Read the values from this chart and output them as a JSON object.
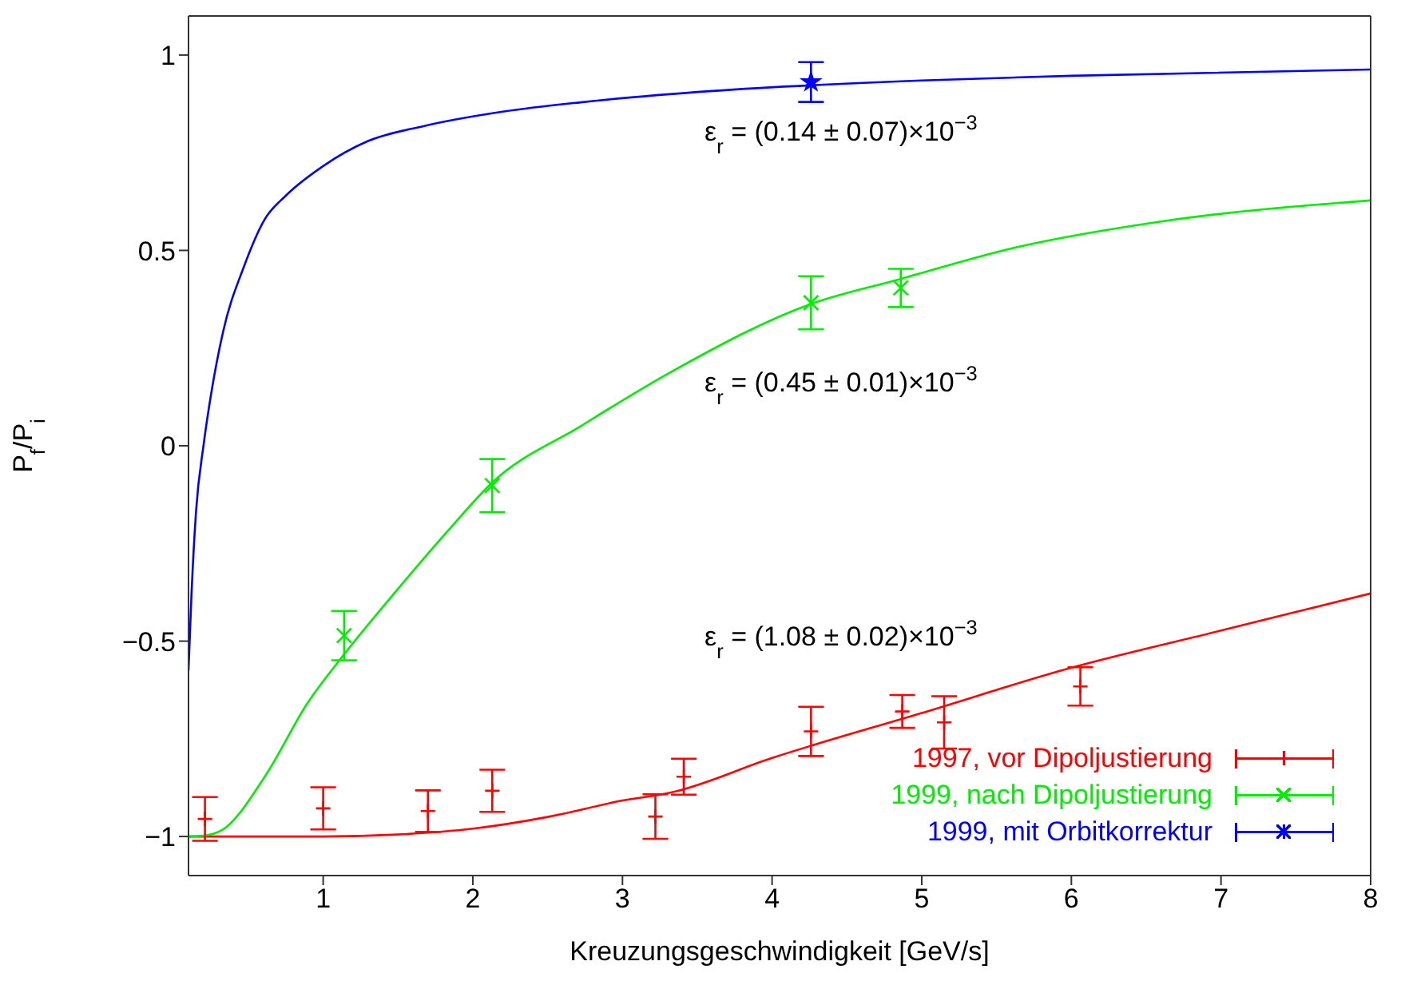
{
  "chart_data": {
    "type": "scatter",
    "xlabel": "Kreuzungsgeschwindigkeit [GeV/s]",
    "ylabel": "P$_{f}$/P$_{i}$",
    "xlim": [
      0.1,
      8
    ],
    "ylim": [
      -1.1,
      1.1
    ],
    "xticks": [
      1,
      2,
      3,
      4,
      5,
      6,
      7,
      8
    ],
    "yticks": [
      -1,
      -0.5,
      0,
      0.5,
      1
    ],
    "grid": false,
    "legend": "bottom right",
    "series": [
      {
        "type": "line",
        "color": "#ff0000",
        "x": [
          0.1,
          1,
          1.5,
          2,
          2.5,
          3,
          3.33,
          4,
          5,
          6,
          7,
          8
        ],
        "values": [
          -1,
          -1,
          -0.995,
          -0.98,
          -0.95,
          -0.908,
          -0.887,
          -0.799,
          -0.684,
          -0.568,
          -0.473,
          -0.378
        ]
      },
      {
        "type": "line",
        "color": "#00ee00",
        "x": [
          0.1,
          0.2,
          0.33,
          0.61,
          0.9,
          1.14,
          1.49,
          1.84,
          2.13,
          2.72,
          3.33,
          4.26,
          4.86,
          5.6,
          6.6,
          8
        ],
        "values": [
          -1,
          -0.998,
          -0.982,
          -0.847,
          -0.656,
          -0.534,
          -0.371,
          -0.215,
          -0.094,
          0.05,
          0.19,
          0.363,
          0.427,
          0.505,
          0.574,
          0.628
        ]
      },
      {
        "type": "line",
        "color": "#0000ff",
        "x": [
          0.1,
          0.12,
          0.15,
          0.2,
          0.25,
          0.33,
          0.47,
          0.61,
          0.75,
          1,
          1.3,
          1.67,
          2.2,
          2.72,
          3.6,
          5,
          6,
          8
        ],
        "values": [
          -0.575,
          -0.38,
          -0.17,
          0,
          0.13,
          0.29,
          0.458,
          0.58,
          0.64,
          0.716,
          0.78,
          0.818,
          0.855,
          0.879,
          0.908,
          0.935,
          0.947,
          0.963
        ]
      },
      {
        "name": "1997, vor Dipoljustierung",
        "color": "#ff0000",
        "marker": "cross",
        "x": [
          0.21,
          1,
          1.7,
          2.13,
          3.22,
          3.41,
          4.26,
          4.87,
          5.15,
          6.06
        ],
        "values": [
          -0.955,
          -0.928,
          -0.935,
          -0.883,
          -0.949,
          -0.847,
          -0.731,
          -0.68,
          -0.708,
          -0.616
        ],
        "errors": [
          0.056,
          0.054,
          0.053,
          0.054,
          0.057,
          0.046,
          0.063,
          0.042,
          0.067,
          0.049
        ]
      },
      {
        "name": "1999, nach Dipoljustierung",
        "color": "#00ee00",
        "marker": "x",
        "x": [
          1.14,
          2.13,
          4.26,
          4.86
        ],
        "values": [
          -0.486,
          -0.102,
          0.366,
          0.404
        ],
        "errors": [
          0.063,
          0.068,
          0.068,
          0.049
        ]
      },
      {
        "name": "1999, mit Orbitkorrektur",
        "color": "#0000ff",
        "marker": "star",
        "x": [
          4.26
        ],
        "values": [
          0.931
        ],
        "errors": [
          0.051
        ]
      }
    ],
    "annotations": [
      "ε$_{r}$ = (0.14 ± 0.07)×10$^{−3}$",
      "ε$_{r}$ = (0.45 ± 0.01)×10$^{−3}$",
      "ε$_{r}$ = (1.08 ± 0.02)×10$^{−3}$"
    ]
  }
}
